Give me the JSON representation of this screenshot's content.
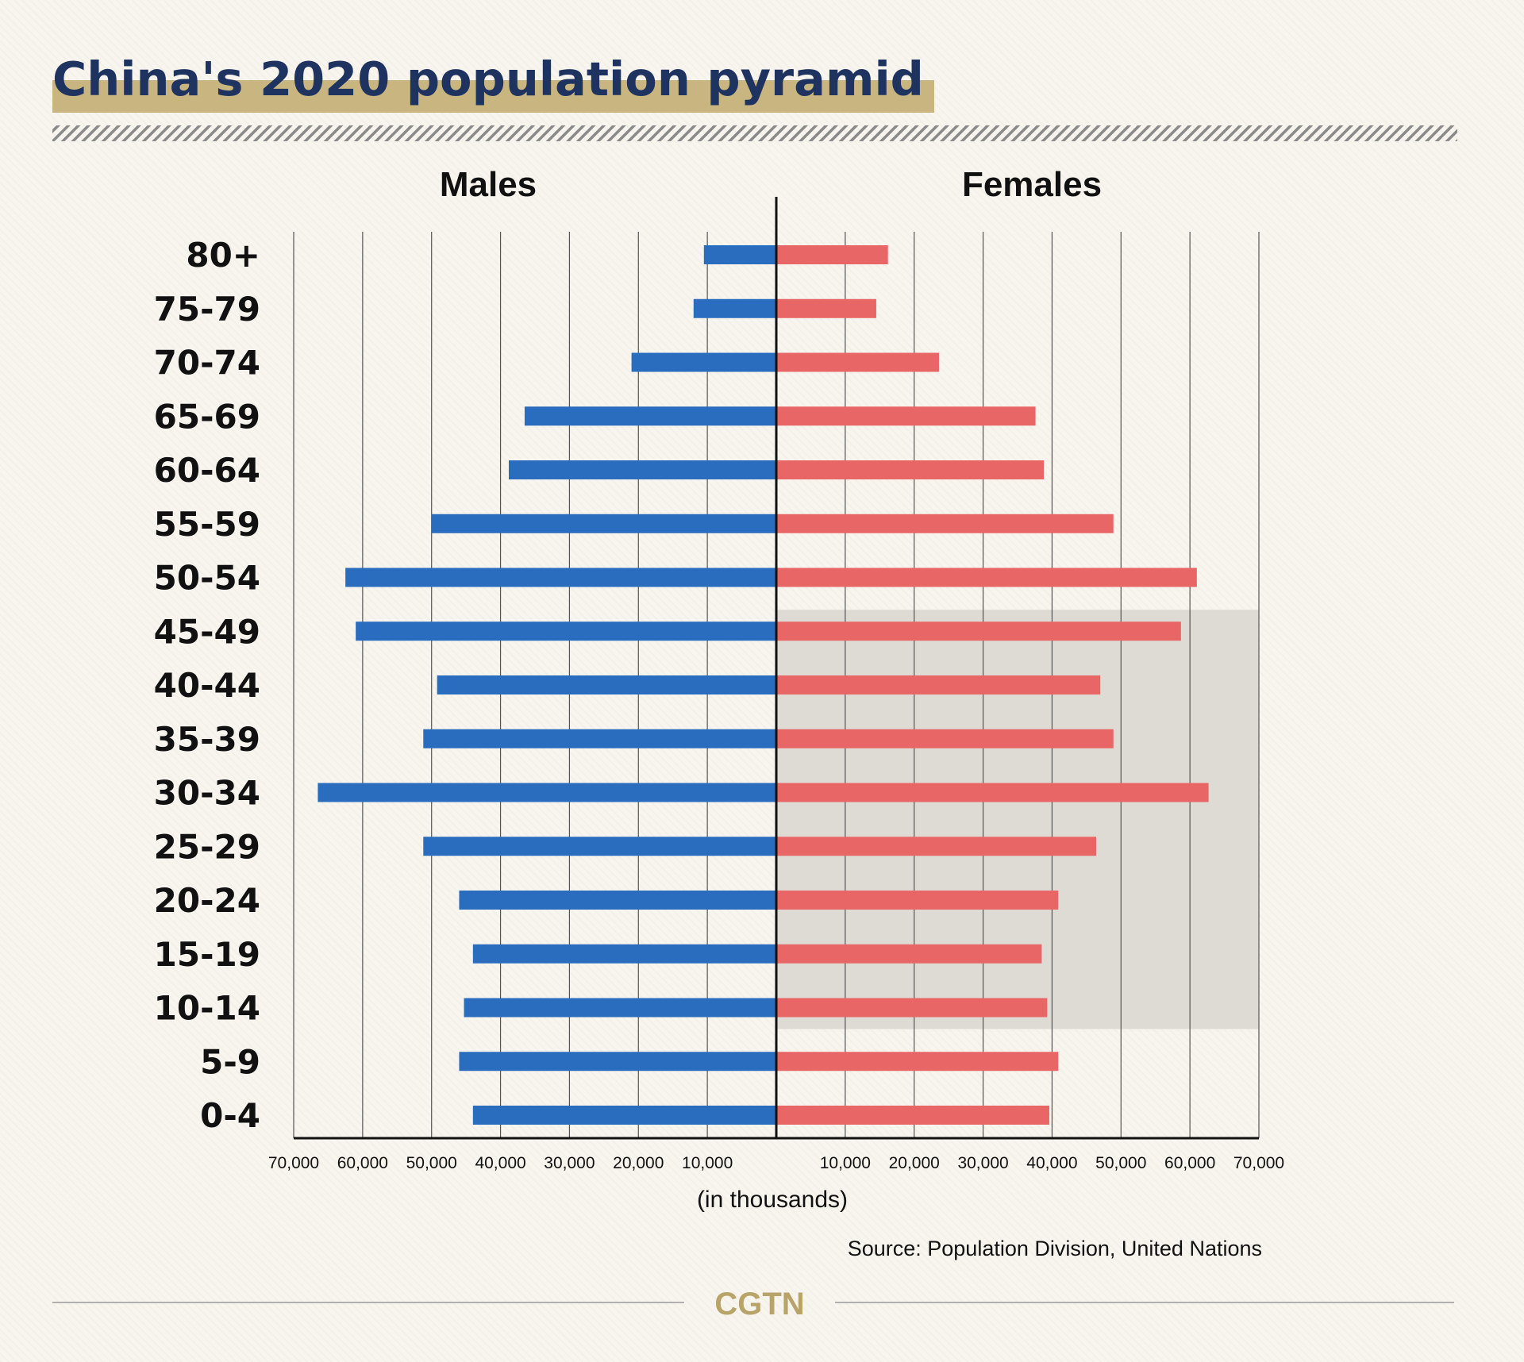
{
  "header": {
    "title": "China's 2020 population pyramid"
  },
  "colors": {
    "title": "#1e3360",
    "title_highlight": "#c9b57f",
    "males": "#2a6dbf",
    "females": "#e96667",
    "shade": "#dddbd4",
    "gridline": "#555555",
    "axis": "#111111",
    "hatch": "#8a8a8a",
    "logo": "#b8a469"
  },
  "chart_data": {
    "type": "bar",
    "title": "",
    "left_label": "Males",
    "right_label": "Females",
    "xlabel": "(in thousands)",
    "categories": [
      "80+",
      "75-79",
      "70-74",
      "65-69",
      "60-64",
      "55-59",
      "50-54",
      "45-49",
      "40-44",
      "35-39",
      "30-34",
      "25-29",
      "20-24",
      "15-19",
      "10-14",
      "5-9",
      "0-4"
    ],
    "series": [
      {
        "name": "Males",
        "values": [
          10500,
          12000,
          21000,
          36500,
          38800,
          50000,
          62500,
          61000,
          49200,
          51200,
          66500,
          51200,
          46000,
          44000,
          45300,
          46000,
          44000
        ]
      },
      {
        "name": "Females",
        "values": [
          16200,
          14500,
          23600,
          37600,
          38800,
          48900,
          61000,
          58700,
          47000,
          48900,
          62700,
          46400,
          40900,
          38500,
          39300,
          40900,
          39600
        ]
      }
    ],
    "xlim": [
      -70000,
      70000
    ],
    "tick_labels": [
      "70,000",
      "60,000",
      "50,000",
      "40,000",
      "30,000",
      "20,000",
      "10,000",
      "10,000",
      "20,000",
      "30,000",
      "40,000",
      "50,000",
      "60,000",
      "70,000"
    ],
    "highlight_band": {
      "from_category": "45-49",
      "to_category": "10-14",
      "side": "Females"
    },
    "grid": true,
    "legend": "top"
  },
  "footer": {
    "source": "Source: Population Division, United Nations",
    "logo": "CGTN"
  }
}
